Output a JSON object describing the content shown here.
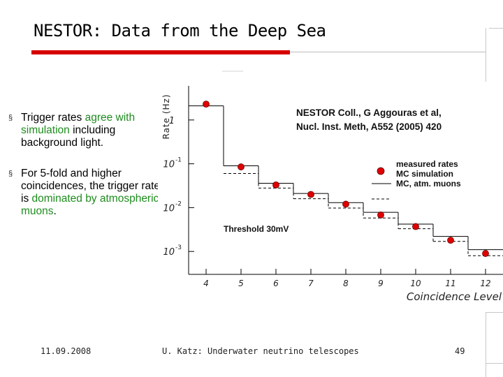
{
  "slide": {
    "title": "NESTOR: Data from the Deep Sea",
    "bullets": [
      {
        "parts": [
          {
            "text": "Trigger rates ",
            "hl": false
          },
          {
            "text": "agree with simulation",
            "hl": true
          },
          {
            "text": " including background light.",
            "hl": false
          }
        ]
      },
      {
        "parts": [
          {
            "text": "For 5-fold and higher coincidences, the trigger rate is ",
            "hl": false
          },
          {
            "text": "dominated by atmospheric muons",
            "hl": true
          },
          {
            "text": ".",
            "hl": false
          }
        ]
      }
    ],
    "bullet_marker": "§",
    "footer": {
      "date": "11.09.2008",
      "author": "U. Katz: Underwater neutrino telescopes",
      "page": "49"
    }
  },
  "colors": {
    "accent_bar": "#d60000",
    "highlight_text": "#1e8c1e",
    "marker_fill": "#e00000"
  },
  "chart_data": {
    "type": "scatter",
    "title": "",
    "xlabel": "Coincidence Level",
    "ylabel": "Rate (Hz)",
    "y_scale": "log",
    "xlim": [
      3.5,
      12.5
    ],
    "ylim": [
      0.0003,
      6
    ],
    "x_ticks": [
      "4",
      "5",
      "6",
      "7",
      "8",
      "9",
      "10",
      "11",
      "12"
    ],
    "y_ticks": [
      {
        "value": 1,
        "label": "1",
        "exp": ""
      },
      {
        "value": 0.1,
        "label": "10",
        "exp": "-1"
      },
      {
        "value": 0.01,
        "label": "10",
        "exp": "-2"
      },
      {
        "value": 0.001,
        "label": "10",
        "exp": "-3"
      }
    ],
    "annotations": [
      {
        "text": "NESTOR Coll., G Aggouras et al,"
      },
      {
        "text": "Nucl. Inst. Meth, A552 (2005) 420"
      },
      {
        "text": "Threshold 30mV"
      }
    ],
    "legend": {
      "position": "top-right",
      "entries": [
        "measured rates",
        "MC simulation",
        "MC, atm. muons"
      ]
    },
    "series": [
      {
        "name": "measured rates",
        "style": "marker",
        "x": [
          4,
          5,
          6,
          7,
          8,
          9,
          10,
          11,
          12
        ],
        "y": [
          2.3,
          0.085,
          0.033,
          0.02,
          0.012,
          0.0068,
          0.0037,
          0.0018,
          0.0009
        ]
      },
      {
        "name": "MC simulation",
        "style": "solid-step",
        "x": [
          4,
          5,
          6,
          7,
          8,
          9,
          10,
          11,
          12
        ],
        "y": [
          2.1,
          0.09,
          0.036,
          0.021,
          0.013,
          0.0078,
          0.0042,
          0.0022,
          0.0011
        ]
      },
      {
        "name": "MC, atm. muons",
        "style": "dashed-step",
        "x": [
          5,
          6,
          7,
          8,
          9,
          10,
          11,
          12
        ],
        "y": [
          0.06,
          0.028,
          0.016,
          0.0098,
          0.0058,
          0.0033,
          0.0017,
          0.0008
        ]
      }
    ]
  }
}
